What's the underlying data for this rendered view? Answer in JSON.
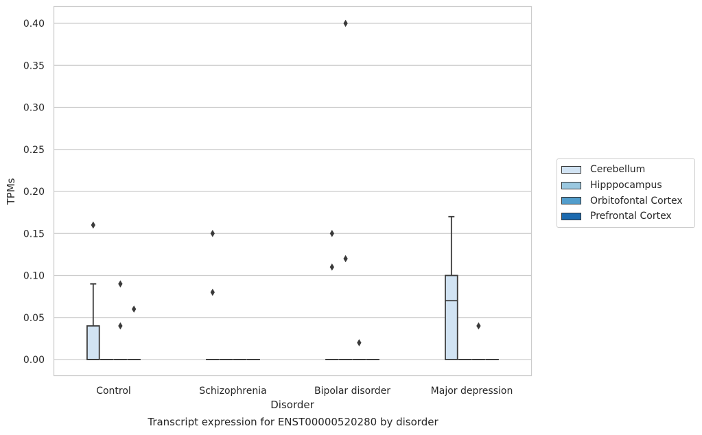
{
  "chart_data": {
    "type": "box",
    "title": "",
    "xlabel": "Disorder",
    "ylabel": "TPMs",
    "caption": "Transcript expression for ENST00000520280 by disorder",
    "ylim": [
      -0.02,
      0.42
    ],
    "yticks": [
      "0.00",
      "0.05",
      "0.10",
      "0.15",
      "0.20",
      "0.25",
      "0.30",
      "0.35",
      "0.40"
    ],
    "categories": [
      "Control",
      "Schizophrenia",
      "Bipolar disorder",
      "Major depression"
    ],
    "grid": true,
    "legend_position": "right",
    "series": [
      {
        "name": "Cerebellum",
        "color": "#d1e3f3",
        "boxes": [
          {
            "q1": 0.0,
            "median": 0.0,
            "q3": 0.04,
            "whisker_low": 0.0,
            "whisker_high": 0.09,
            "outliers": [
              0.16
            ]
          },
          {
            "q1": 0.0,
            "median": 0.0,
            "q3": 0.0,
            "whisker_low": 0.0,
            "whisker_high": 0.0,
            "outliers": [
              0.15,
              0.08
            ]
          },
          {
            "q1": 0.0,
            "median": 0.0,
            "q3": 0.0,
            "whisker_low": 0.0,
            "whisker_high": 0.0,
            "outliers": [
              0.15,
              0.11
            ]
          },
          {
            "q1": 0.0,
            "median": 0.07,
            "q3": 0.1,
            "whisker_low": 0.0,
            "whisker_high": 0.17,
            "outliers": []
          }
        ]
      },
      {
        "name": "Hipppocampus",
        "color": "#9ac8e0",
        "boxes": [
          {
            "q1": 0.0,
            "median": 0.0,
            "q3": 0.0,
            "whisker_low": 0.0,
            "whisker_high": 0.0,
            "outliers": []
          },
          {
            "q1": 0.0,
            "median": 0.0,
            "q3": 0.0,
            "whisker_low": 0.0,
            "whisker_high": 0.0,
            "outliers": []
          },
          {
            "q1": 0.0,
            "median": 0.0,
            "q3": 0.0,
            "whisker_low": 0.0,
            "whisker_high": 0.0,
            "outliers": [
              0.4,
              0.12
            ]
          },
          {
            "q1": 0.0,
            "median": 0.0,
            "q3": 0.0,
            "whisker_low": 0.0,
            "whisker_high": 0.0,
            "outliers": []
          }
        ]
      },
      {
        "name": "Orbitofontal Cortex",
        "color": "#529dcc",
        "boxes": [
          {
            "q1": 0.0,
            "median": 0.0,
            "q3": 0.0,
            "whisker_low": 0.0,
            "whisker_high": 0.0,
            "outliers": [
              0.09,
              0.04
            ]
          },
          {
            "q1": 0.0,
            "median": 0.0,
            "q3": 0.0,
            "whisker_low": 0.0,
            "whisker_high": 0.0,
            "outliers": []
          },
          {
            "q1": 0.0,
            "median": 0.0,
            "q3": 0.0,
            "whisker_low": 0.0,
            "whisker_high": 0.0,
            "outliers": [
              0.02
            ]
          },
          {
            "q1": 0.0,
            "median": 0.0,
            "q3": 0.0,
            "whisker_low": 0.0,
            "whisker_high": 0.0,
            "outliers": [
              0.04
            ]
          }
        ]
      },
      {
        "name": "Prefrontal Cortex",
        "color": "#1c6aaf",
        "boxes": [
          {
            "q1": 0.0,
            "median": 0.0,
            "q3": 0.0,
            "whisker_low": 0.0,
            "whisker_high": 0.0,
            "outliers": [
              0.06
            ]
          },
          {
            "q1": 0.0,
            "median": 0.0,
            "q3": 0.0,
            "whisker_low": 0.0,
            "whisker_high": 0.0,
            "outliers": []
          },
          {
            "q1": 0.0,
            "median": 0.0,
            "q3": 0.0,
            "whisker_low": 0.0,
            "whisker_high": 0.0,
            "outliers": []
          },
          {
            "q1": 0.0,
            "median": 0.0,
            "q3": 0.0,
            "whisker_low": 0.0,
            "whisker_high": 0.0,
            "outliers": []
          }
        ]
      }
    ]
  }
}
